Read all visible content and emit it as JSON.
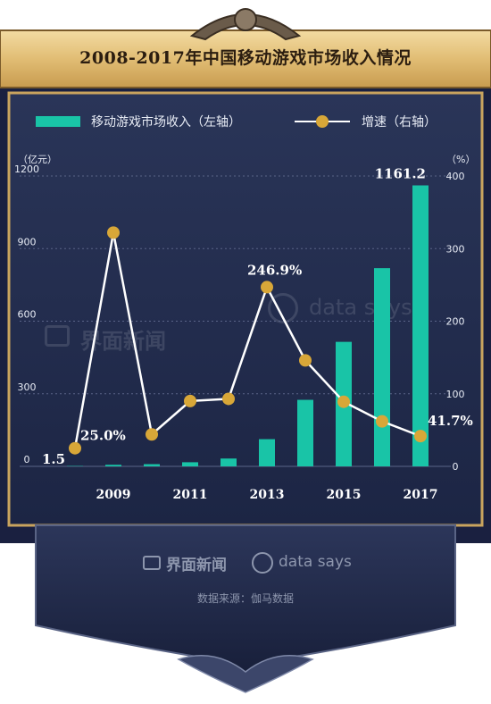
{
  "title": "2008-2017年中国移动游戏市场收入情况",
  "legend": {
    "bar_label": "移动游戏市场收入（左轴）",
    "line_label": "增速（右轴）"
  },
  "axes": {
    "left_unit": "（亿元）",
    "right_unit": "（%）"
  },
  "colors": {
    "bar": "#19c4a7",
    "line": "#ffffff",
    "marker": "#d8a738",
    "panel": "#212c4d",
    "frame": "#c9a45e"
  },
  "watermark": {
    "logo_text": "界面新闻",
    "ds_text": "data says"
  },
  "footer": {
    "brand": "界面新闻",
    "ds": "data says",
    "source": "数据来源：伽马数据"
  },
  "chart_data": {
    "type": "bar",
    "x": [
      2008,
      2009,
      2010,
      2011,
      2012,
      2013,
      2014,
      2015,
      2016,
      2017
    ],
    "x_tick_labels": [
      "2009",
      "2011",
      "2013",
      "2015",
      "2017"
    ],
    "series": [
      {
        "name": "移动游戏市场收入（左轴）",
        "type": "bar",
        "axis": "left",
        "values": [
          1.5,
          6.5,
          9.1,
          17.0,
          32.4,
          112.4,
          274.9,
          514.6,
          819.2,
          1161.2
        ]
      },
      {
        "name": "增速（右轴）",
        "type": "line",
        "axis": "right",
        "values": [
          25.0,
          322.0,
          44.0,
          90.0,
          93.0,
          246.9,
          146.0,
          89.0,
          62.0,
          41.7
        ]
      }
    ],
    "left_axis": {
      "ylim": [
        0,
        1200
      ],
      "ticks": [
        "0",
        "300",
        "600",
        "900",
        "1200"
      ]
    },
    "right_axis": {
      "ylim": [
        0,
        400
      ],
      "ticks": [
        "0",
        "100",
        "200",
        "300",
        "400"
      ]
    },
    "annotations": [
      {
        "text": "1.5",
        "x": 2008,
        "series": "bar"
      },
      {
        "text": "25.0%",
        "x": 2008,
        "series": "line"
      },
      {
        "text": "246.9%",
        "x": 2013,
        "series": "line"
      },
      {
        "text": "1161.2",
        "x": 2017,
        "series": "bar"
      },
      {
        "text": "41.7%",
        "x": 2017,
        "series": "line"
      }
    ],
    "grid": true,
    "legend_position": "top"
  }
}
